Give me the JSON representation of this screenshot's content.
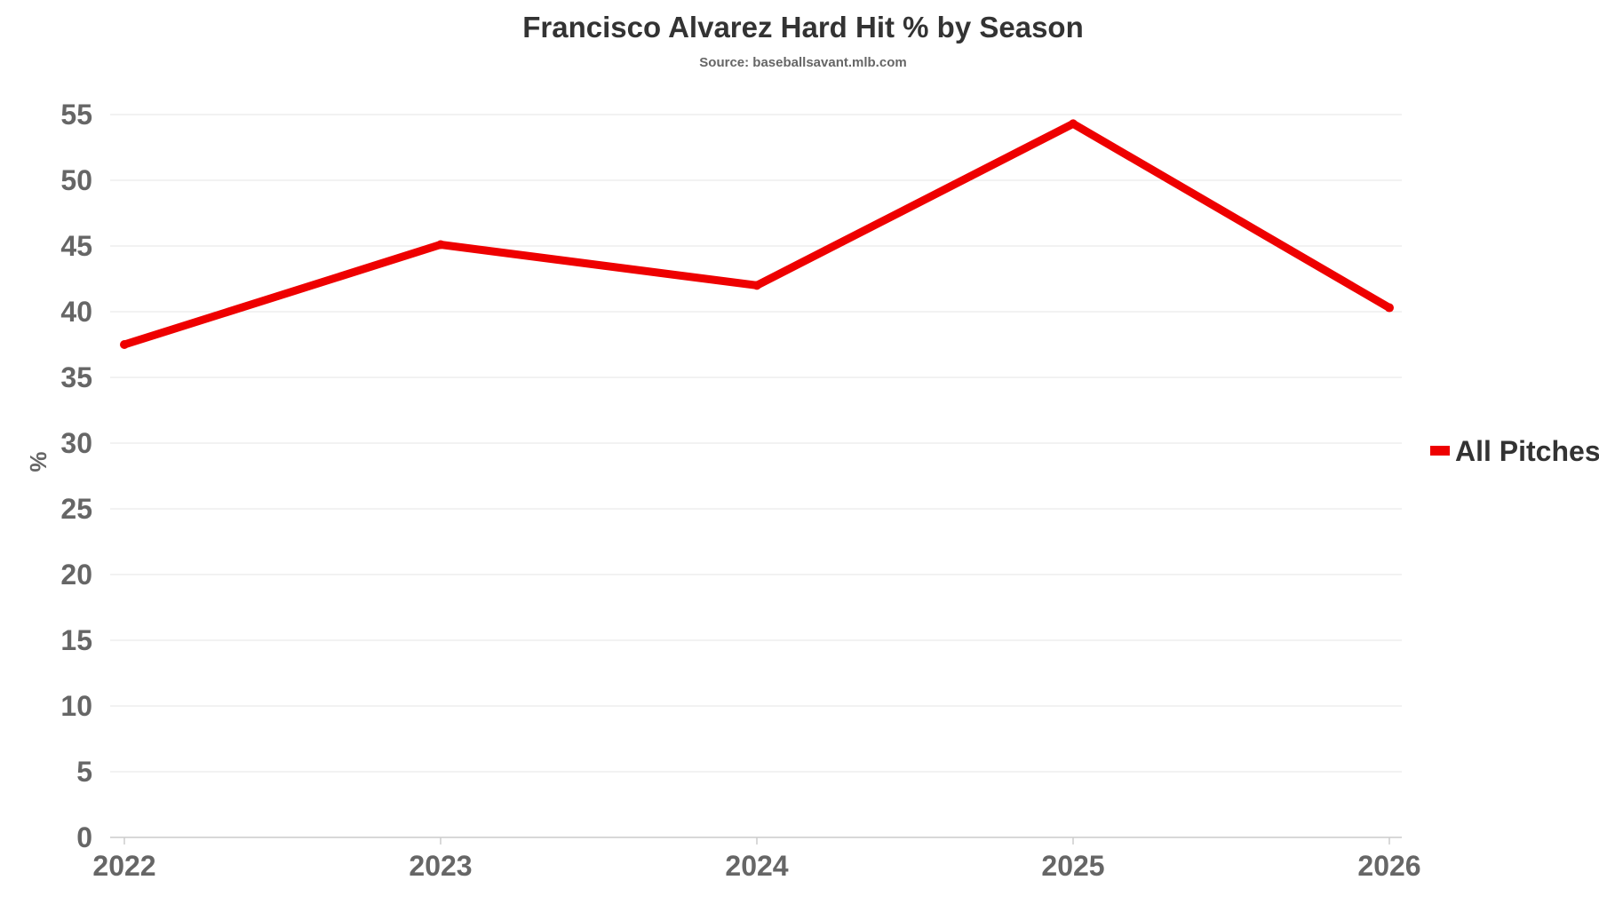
{
  "chart_data": {
    "type": "line",
    "title": "Francisco Alvarez Hard Hit % by Season",
    "subtitle": "Source: baseballsavant.mlb.com",
    "xlabel": "",
    "ylabel": "%",
    "x": [
      "2022",
      "2023",
      "2024",
      "2025",
      "2026"
    ],
    "yticks": [
      "0",
      "5",
      "10",
      "15",
      "20",
      "25",
      "30",
      "35",
      "40",
      "45",
      "50",
      "55"
    ],
    "ylim": [
      0,
      55
    ],
    "grid": true,
    "legend_position": "right",
    "series": [
      {
        "name": "All Pitches",
        "color": "#ee0000",
        "values": [
          37.5,
          45.1,
          42.0,
          54.3,
          40.3
        ]
      }
    ]
  }
}
